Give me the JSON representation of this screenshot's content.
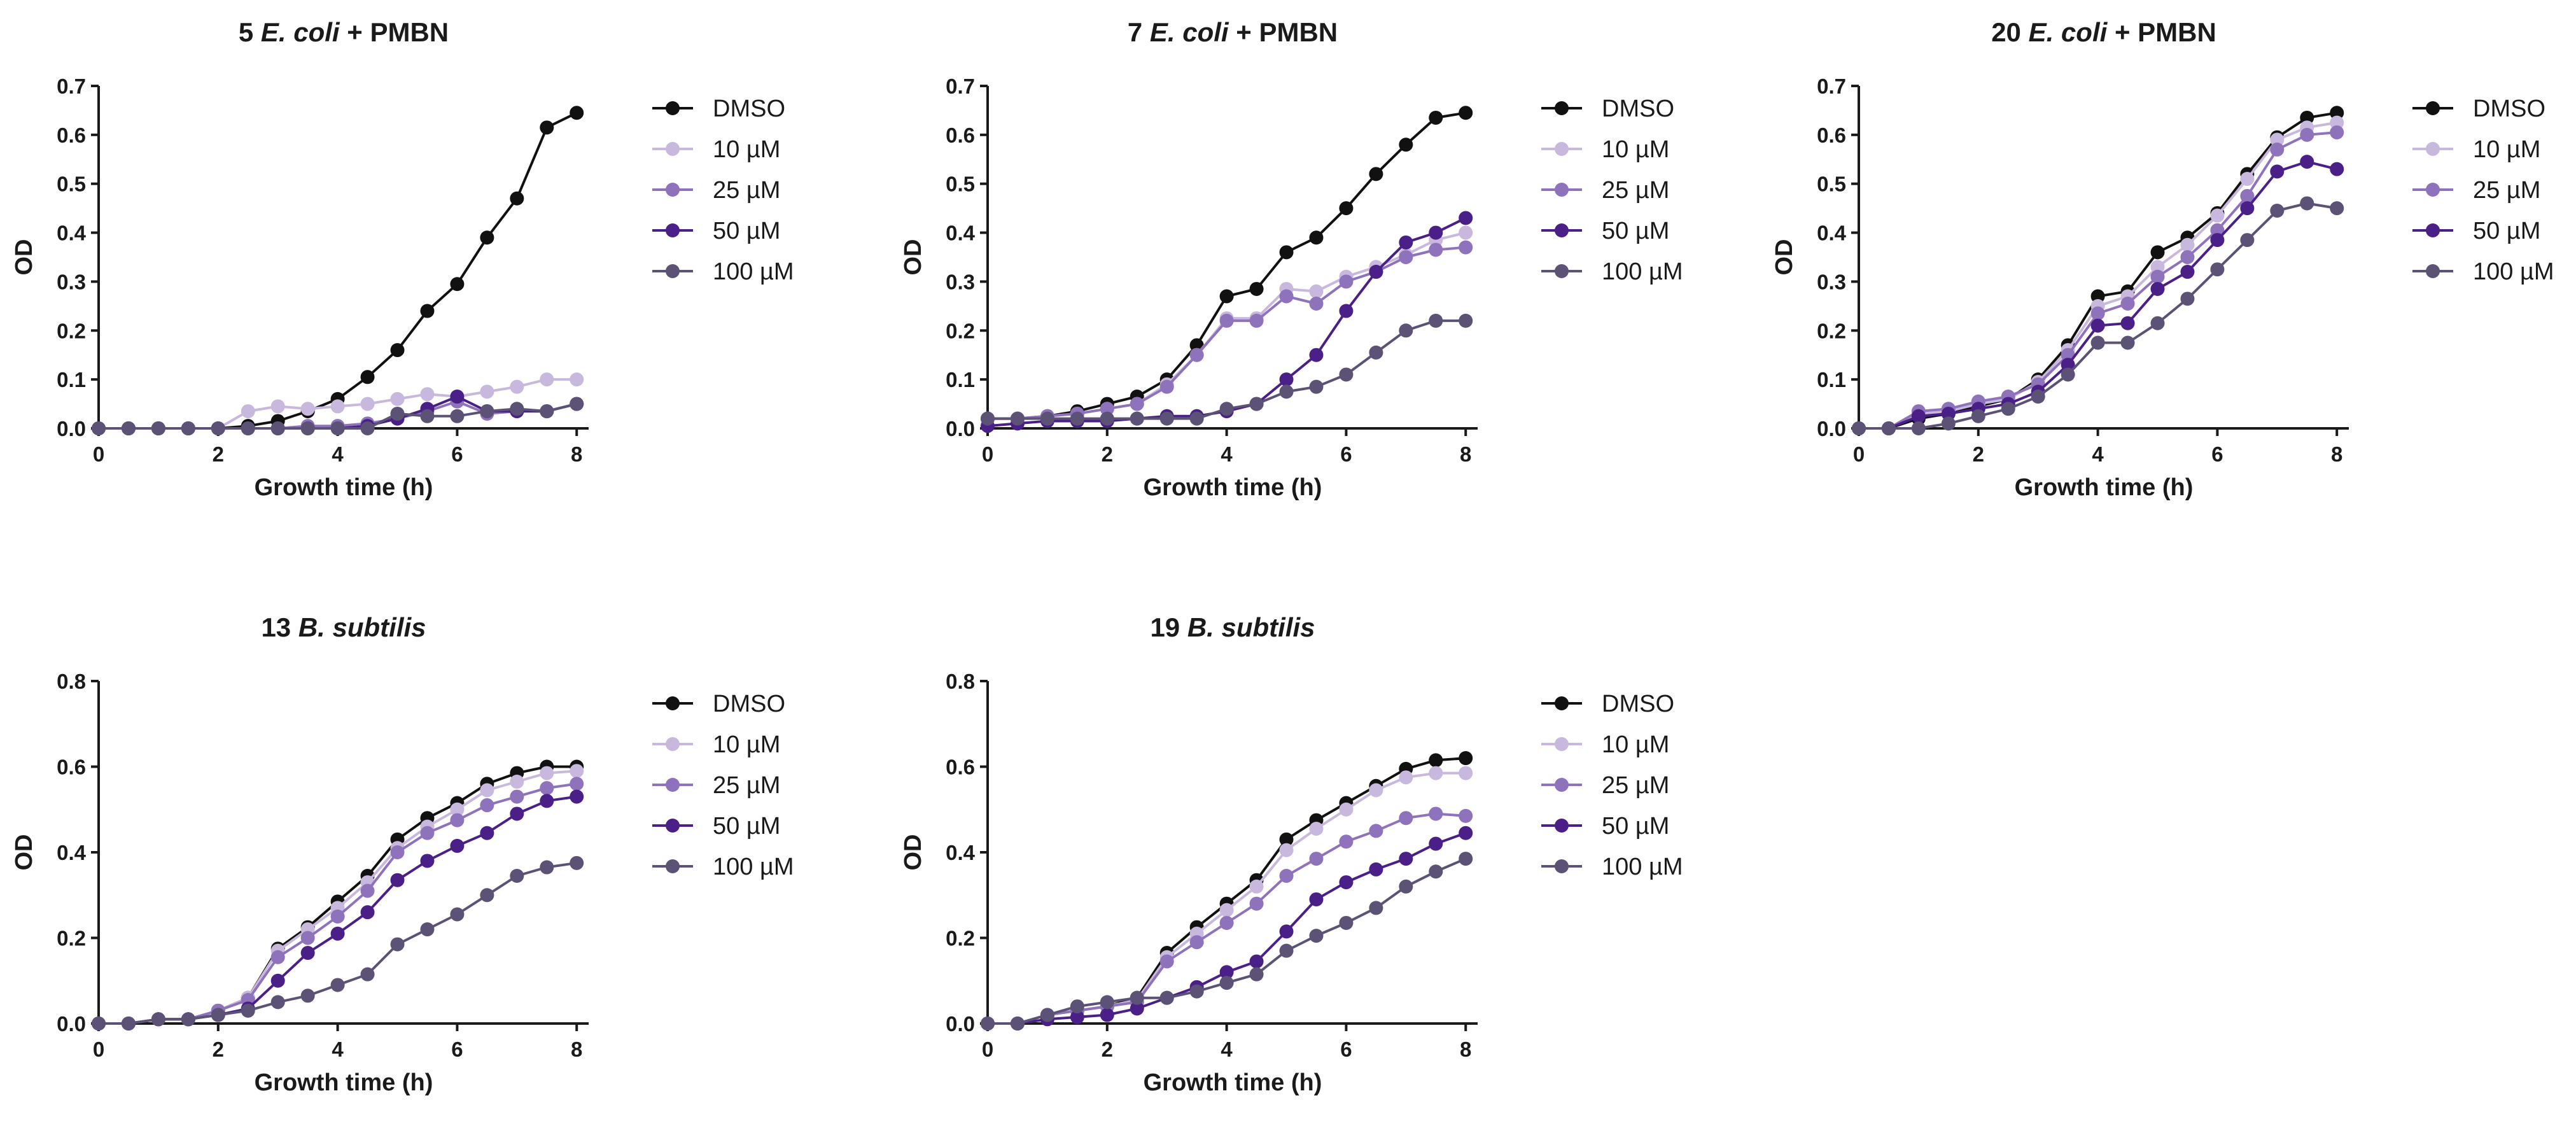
{
  "colors": {
    "DMSO": "#111111",
    "10 µM": "#c9b8dd",
    "25 µM": "#8e72bb",
    "50 µM": "#4a2088",
    "100 µM": "#5c5275",
    "axis": "#1a1a1a"
  },
  "chart_data": [
    {
      "type": "line",
      "title_pre": "5 ",
      "title_ital": "E. coli",
      "title_post": " + PMBN",
      "xlabel": "Growth time (h)",
      "ylabel": "OD",
      "xlim": [
        0,
        8.2
      ],
      "ylim": [
        0,
        0.7
      ],
      "xticks": [
        0,
        2,
        4,
        6,
        8
      ],
      "yticks": [
        0.0,
        0.1,
        0.2,
        0.3,
        0.4,
        0.5,
        0.6,
        0.7
      ],
      "ytick_labels": [
        "0.0",
        "0.1",
        "0.2",
        "0.3",
        "0.4",
        "0.5",
        "0.6",
        "0.7"
      ],
      "x": [
        0,
        0.5,
        1,
        1.5,
        2,
        2.5,
        3,
        3.5,
        4,
        4.5,
        5,
        5.5,
        6,
        6.5,
        7,
        7.5,
        8
      ],
      "series": [
        {
          "name": "DMSO",
          "values": [
            0,
            0,
            0,
            0,
            0,
            0.005,
            0.015,
            0.035,
            0.06,
            0.105,
            0.16,
            0.24,
            0.295,
            0.39,
            0.47,
            0.615,
            0.645
          ]
        },
        {
          "name": "10 µM",
          "values": [
            0,
            0,
            0,
            0,
            0,
            0.035,
            0.045,
            0.04,
            0.045,
            0.05,
            0.06,
            0.07,
            0.065,
            0.075,
            0.085,
            0.1,
            0.1
          ]
        },
        {
          "name": "25 µM",
          "values": [
            0,
            0,
            0,
            0,
            0,
            0,
            0,
            0.005,
            0.005,
            0.01,
            0.02,
            0.035,
            0.055,
            0.03,
            0.035,
            0.035,
            0.05
          ]
        },
        {
          "name": "50 µM",
          "values": [
            0,
            0,
            0,
            0,
            0,
            0,
            0,
            0,
            0,
            0.005,
            0.02,
            0.04,
            0.065,
            0.035,
            0.035,
            0.035,
            0.05
          ]
        },
        {
          "name": "100 µM",
          "values": [
            0,
            0,
            0,
            0,
            0,
            0,
            0,
            0,
            0,
            0,
            0.03,
            0.025,
            0.025,
            0.035,
            0.04,
            0.035,
            0.05
          ]
        }
      ]
    },
    {
      "type": "line",
      "title_pre": "7 ",
      "title_ital": "E. coli",
      "title_post": " + PMBN",
      "xlabel": "Growth time (h)",
      "ylabel": "OD",
      "xlim": [
        0,
        8.2
      ],
      "ylim": [
        0,
        0.7
      ],
      "xticks": [
        0,
        2,
        4,
        6,
        8
      ],
      "yticks": [
        0.0,
        0.1,
        0.2,
        0.3,
        0.4,
        0.5,
        0.6,
        0.7
      ],
      "ytick_labels": [
        "0.0",
        "0.1",
        "0.2",
        "0.3",
        "0.4",
        "0.5",
        "0.6",
        "0.7"
      ],
      "x": [
        0,
        0.5,
        1,
        1.5,
        2,
        2.5,
        3,
        3.5,
        4,
        4.5,
        5,
        5.5,
        6,
        6.5,
        7,
        7.5,
        8
      ],
      "series": [
        {
          "name": "DMSO",
          "values": [
            0.02,
            0.02,
            0.025,
            0.035,
            0.05,
            0.065,
            0.1,
            0.17,
            0.27,
            0.285,
            0.36,
            0.39,
            0.45,
            0.52,
            0.58,
            0.635,
            0.645
          ]
        },
        {
          "name": "10 µM",
          "values": [
            0.02,
            0.02,
            0.025,
            0.03,
            0.04,
            0.05,
            0.09,
            0.15,
            0.225,
            0.225,
            0.285,
            0.28,
            0.31,
            0.33,
            0.355,
            0.385,
            0.4
          ]
        },
        {
          "name": "25 µM",
          "values": [
            0.02,
            0.02,
            0.025,
            0.03,
            0.04,
            0.05,
            0.085,
            0.15,
            0.22,
            0.22,
            0.27,
            0.255,
            0.3,
            0.32,
            0.35,
            0.365,
            0.37
          ]
        },
        {
          "name": "50 µM",
          "values": [
            0.005,
            0.01,
            0.015,
            0.015,
            0.015,
            0.02,
            0.025,
            0.025,
            0.035,
            0.05,
            0.1,
            0.15,
            0.24,
            0.32,
            0.38,
            0.4,
            0.43
          ]
        },
        {
          "name": "100 µM",
          "values": [
            0.02,
            0.02,
            0.02,
            0.02,
            0.02,
            0.02,
            0.02,
            0.02,
            0.04,
            0.05,
            0.075,
            0.085,
            0.11,
            0.155,
            0.2,
            0.22,
            0.22
          ]
        }
      ]
    },
    {
      "type": "line",
      "title_pre": "20 ",
      "title_ital": "E. coli",
      "title_post": " + PMBN",
      "xlabel": "Growth time (h)",
      "ylabel": "OD",
      "xlim": [
        0,
        8.2
      ],
      "ylim": [
        0,
        0.7
      ],
      "xticks": [
        0,
        2,
        4,
        6,
        8
      ],
      "yticks": [
        0.0,
        0.1,
        0.2,
        0.3,
        0.4,
        0.5,
        0.6,
        0.7
      ],
      "ytick_labels": [
        "0.0",
        "0.1",
        "0.2",
        "0.3",
        "0.4",
        "0.5",
        "0.6",
        "0.7"
      ],
      "x": [
        0,
        0.5,
        1,
        1.5,
        2,
        2.5,
        3,
        3.5,
        4,
        4.5,
        5,
        5.5,
        6,
        6.5,
        7,
        7.5,
        8
      ],
      "series": [
        {
          "name": "DMSO",
          "values": [
            0,
            0,
            0.02,
            0.03,
            0.045,
            0.06,
            0.1,
            0.17,
            0.27,
            0.28,
            0.36,
            0.39,
            0.44,
            0.52,
            0.595,
            0.635,
            0.645
          ]
        },
        {
          "name": "10 µM",
          "values": [
            0,
            0,
            0.03,
            0.035,
            0.05,
            0.06,
            0.095,
            0.16,
            0.25,
            0.27,
            0.33,
            0.375,
            0.435,
            0.51,
            0.59,
            0.615,
            0.625
          ]
        },
        {
          "name": "25 µM",
          "values": [
            0,
            0,
            0.035,
            0.04,
            0.055,
            0.065,
            0.09,
            0.15,
            0.235,
            0.255,
            0.31,
            0.35,
            0.405,
            0.475,
            0.57,
            0.6,
            0.605
          ]
        },
        {
          "name": "50 µM",
          "values": [
            0,
            0,
            0.025,
            0.03,
            0.04,
            0.05,
            0.075,
            0.13,
            0.21,
            0.215,
            0.285,
            0.32,
            0.385,
            0.45,
            0.525,
            0.545,
            0.53
          ]
        },
        {
          "name": "100 µM",
          "values": [
            0,
            0,
            0,
            0.01,
            0.025,
            0.04,
            0.065,
            0.11,
            0.175,
            0.175,
            0.215,
            0.265,
            0.325,
            0.385,
            0.445,
            0.46,
            0.45
          ]
        }
      ]
    },
    {
      "type": "line",
      "title_pre": "13 ",
      "title_ital": "B. subtilis",
      "title_post": "",
      "xlabel": "Growth time (h)",
      "ylabel": "OD",
      "xlim": [
        0,
        8.2
      ],
      "ylim": [
        0,
        0.8
      ],
      "xticks": [
        0,
        2,
        4,
        6,
        8
      ],
      "yticks": [
        0.0,
        0.2,
        0.4,
        0.6,
        0.8
      ],
      "ytick_labels": [
        "0.0",
        "0.2",
        "0.4",
        "0.6",
        "0.8"
      ],
      "x": [
        0,
        0.5,
        1,
        1.5,
        2,
        2.5,
        3,
        3.5,
        4,
        4.5,
        5,
        5.5,
        6,
        6.5,
        7,
        7.5,
        8
      ],
      "series": [
        {
          "name": "DMSO",
          "values": [
            0,
            0,
            0.01,
            0.01,
            0.03,
            0.06,
            0.175,
            0.225,
            0.285,
            0.345,
            0.43,
            0.48,
            0.515,
            0.56,
            0.585,
            0.6,
            0.6
          ]
        },
        {
          "name": "10 µM",
          "values": [
            0,
            0,
            0.01,
            0.01,
            0.03,
            0.06,
            0.17,
            0.22,
            0.27,
            0.33,
            0.41,
            0.46,
            0.5,
            0.545,
            0.565,
            0.585,
            0.59
          ]
        },
        {
          "name": "25 µM",
          "values": [
            0,
            0,
            0.01,
            0.01,
            0.03,
            0.055,
            0.155,
            0.2,
            0.25,
            0.31,
            0.4,
            0.445,
            0.475,
            0.51,
            0.53,
            0.55,
            0.56
          ]
        },
        {
          "name": "50 µM",
          "values": [
            0,
            0,
            0.01,
            0.01,
            0.02,
            0.035,
            0.1,
            0.165,
            0.21,
            0.26,
            0.335,
            0.38,
            0.415,
            0.445,
            0.49,
            0.52,
            0.53
          ]
        },
        {
          "name": "100 µM",
          "values": [
            0,
            0,
            0.01,
            0.01,
            0.02,
            0.03,
            0.05,
            0.065,
            0.09,
            0.115,
            0.185,
            0.22,
            0.255,
            0.3,
            0.345,
            0.365,
            0.375
          ]
        }
      ]
    },
    {
      "type": "line",
      "title_pre": "19 ",
      "title_ital": "B. subtilis",
      "title_post": "",
      "xlabel": "Growth time (h)",
      "ylabel": "OD",
      "xlim": [
        0,
        8.2
      ],
      "ylim": [
        0,
        0.8
      ],
      "xticks": [
        0,
        2,
        4,
        6,
        8
      ],
      "yticks": [
        0.0,
        0.2,
        0.4,
        0.6,
        0.8
      ],
      "ytick_labels": [
        "0.0",
        "0.2",
        "0.4",
        "0.6",
        "0.8"
      ],
      "x": [
        0,
        0.5,
        1,
        1.5,
        2,
        2.5,
        3,
        3.5,
        4,
        4.5,
        5,
        5.5,
        6,
        6.5,
        7,
        7.5,
        8
      ],
      "series": [
        {
          "name": "DMSO",
          "values": [
            0,
            0,
            0.02,
            0.03,
            0.04,
            0.06,
            0.165,
            0.225,
            0.28,
            0.335,
            0.43,
            0.475,
            0.515,
            0.555,
            0.595,
            0.615,
            0.62
          ]
        },
        {
          "name": "10 µM",
          "values": [
            0,
            0,
            0.02,
            0.03,
            0.04,
            0.055,
            0.155,
            0.21,
            0.265,
            0.32,
            0.405,
            0.455,
            0.5,
            0.545,
            0.575,
            0.585,
            0.585
          ]
        },
        {
          "name": "25 µM",
          "values": [
            0,
            0,
            0.02,
            0.03,
            0.04,
            0.05,
            0.145,
            0.19,
            0.235,
            0.28,
            0.345,
            0.385,
            0.425,
            0.45,
            0.48,
            0.49,
            0.485
          ]
        },
        {
          "name": "50 µM",
          "values": [
            0,
            0,
            0.01,
            0.015,
            0.02,
            0.035,
            0.06,
            0.085,
            0.12,
            0.145,
            0.215,
            0.29,
            0.33,
            0.36,
            0.385,
            0.42,
            0.445
          ]
        },
        {
          "name": "100 µM",
          "values": [
            0,
            0,
            0.02,
            0.04,
            0.05,
            0.06,
            0.06,
            0.075,
            0.095,
            0.115,
            0.17,
            0.205,
            0.235,
            0.27,
            0.32,
            0.355,
            0.385
          ]
        }
      ]
    }
  ]
}
